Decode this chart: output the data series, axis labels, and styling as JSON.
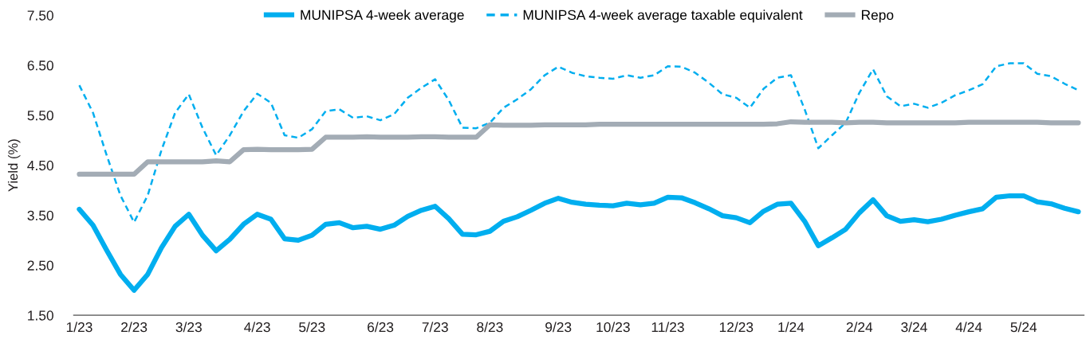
{
  "chart_data": {
    "type": "line",
    "ylabel": "Yield (%)",
    "categories": [
      "1/23",
      null,
      null,
      null,
      "2/23",
      null,
      null,
      null,
      "3/23",
      null,
      null,
      null,
      null,
      "4/23",
      null,
      null,
      null,
      "5/23",
      null,
      null,
      null,
      null,
      "6/23",
      null,
      null,
      null,
      "7/23",
      null,
      null,
      null,
      "8/23",
      null,
      null,
      null,
      null,
      "9/23",
      null,
      null,
      null,
      "10/23",
      null,
      null,
      null,
      "11/23",
      null,
      null,
      null,
      null,
      "12/23",
      null,
      null,
      null,
      "1/24",
      null,
      null,
      null,
      null,
      "2/24",
      null,
      null,
      null,
      "3/24",
      null,
      null,
      null,
      "4/24",
      null,
      null,
      null,
      "5/24",
      null,
      null,
      null,
      null
    ],
    "series": [
      {
        "name": "MUNIPSA 4-week average",
        "color": "#00aeef",
        "line_style": "solid",
        "values": [
          3.62,
          3.3,
          2.8,
          2.32,
          2.0,
          2.32,
          2.85,
          3.28,
          3.52,
          3.1,
          2.79,
          3.02,
          3.32,
          3.52,
          3.42,
          3.03,
          3.0,
          3.1,
          3.32,
          3.35,
          3.25,
          3.28,
          3.22,
          3.3,
          3.48,
          3.6,
          3.68,
          3.43,
          3.12,
          3.11,
          3.18,
          3.38,
          3.47,
          3.6,
          3.74,
          3.84,
          3.76,
          3.72,
          3.7,
          3.69,
          3.74,
          3.71,
          3.74,
          3.86,
          3.85,
          3.75,
          3.63,
          3.49,
          3.45,
          3.35,
          3.58,
          3.72,
          3.74,
          3.38,
          2.89,
          3.05,
          3.22,
          3.55,
          3.81,
          3.49,
          3.38,
          3.41,
          3.37,
          3.42,
          3.5,
          3.57,
          3.63,
          3.86,
          3.89,
          3.89,
          3.77,
          3.73,
          3.64,
          3.57
        ]
      },
      {
        "name": "MUNIPSA 4-week average taxable equivalent",
        "color": "#00aeef",
        "line_style": "dashed",
        "values": [
          6.1,
          5.55,
          4.7,
          3.9,
          3.36,
          3.9,
          4.8,
          5.55,
          5.92,
          5.25,
          4.7,
          5.1,
          5.58,
          5.93,
          5.75,
          5.1,
          5.05,
          5.22,
          5.58,
          5.62,
          5.45,
          5.48,
          5.4,
          5.52,
          5.85,
          6.05,
          6.22,
          5.8,
          5.25,
          5.24,
          5.35,
          5.65,
          5.82,
          6.02,
          6.3,
          6.47,
          6.35,
          6.28,
          6.25,
          6.23,
          6.3,
          6.25,
          6.3,
          6.48,
          6.47,
          6.35,
          6.15,
          5.92,
          5.85,
          5.65,
          6.03,
          6.25,
          6.3,
          5.62,
          4.84,
          5.1,
          5.35,
          5.95,
          6.42,
          5.88,
          5.68,
          5.73,
          5.65,
          5.75,
          5.9,
          6.0,
          6.12,
          6.48,
          6.54,
          6.54,
          6.33,
          6.28,
          6.13,
          6.0
        ]
      },
      {
        "name": "Repo",
        "color": "#a3acb5",
        "line_style": "solid",
        "values": [
          4.32,
          4.32,
          4.32,
          4.32,
          4.32,
          4.57,
          4.57,
          4.57,
          4.57,
          4.57,
          4.59,
          4.57,
          4.81,
          4.82,
          4.81,
          4.81,
          4.81,
          4.82,
          5.06,
          5.06,
          5.06,
          5.07,
          5.06,
          5.06,
          5.06,
          5.07,
          5.07,
          5.06,
          5.06,
          5.06,
          5.31,
          5.3,
          5.3,
          5.3,
          5.31,
          5.31,
          5.31,
          5.31,
          5.32,
          5.32,
          5.32,
          5.32,
          5.32,
          5.32,
          5.32,
          5.32,
          5.32,
          5.32,
          5.32,
          5.32,
          5.32,
          5.33,
          5.37,
          5.36,
          5.36,
          5.36,
          5.35,
          5.36,
          5.36,
          5.35,
          5.35,
          5.35,
          5.35,
          5.35,
          5.35,
          5.36,
          5.36,
          5.36,
          5.36,
          5.36,
          5.36,
          5.35,
          5.35,
          5.35
        ]
      }
    ],
    "ylim": [
      1.5,
      7.5
    ],
    "yticks": [
      {
        "value": 1.5,
        "label": "1.50"
      },
      {
        "value": 2.5,
        "label": "2.50"
      },
      {
        "value": 3.5,
        "label": "3.50"
      },
      {
        "value": 4.5,
        "label": "4.50"
      },
      {
        "value": 5.5,
        "label": "5.50"
      },
      {
        "value": 6.5,
        "label": "6.50"
      },
      {
        "value": 7.5,
        "label": "7.50"
      }
    ],
    "grid": false,
    "legend": "top",
    "marker": "none"
  }
}
